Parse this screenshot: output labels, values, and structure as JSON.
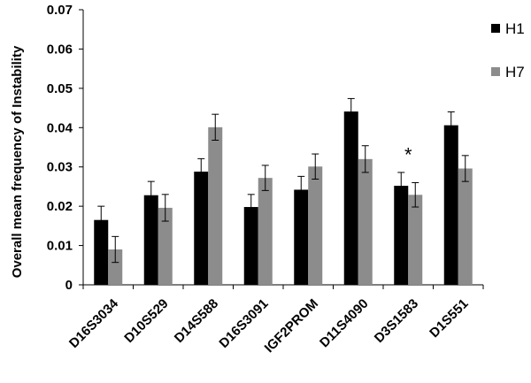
{
  "chart_data": {
    "type": "bar",
    "categories": [
      "D16S3034",
      "D10S529",
      "D14S588",
      "D16S3091",
      "IGF2PROM",
      "D11S4090",
      "D3S1583",
      "D1S551"
    ],
    "series": [
      {
        "name": "H1",
        "color": "#000000",
        "values": [
          0.0165,
          0.0228,
          0.0288,
          0.0198,
          0.0242,
          0.0441,
          0.0252,
          0.0406
        ],
        "errors": [
          0.0035,
          0.0035,
          0.0033,
          0.0032,
          0.0034,
          0.0033,
          0.0034,
          0.0034
        ]
      },
      {
        "name": "H7",
        "color": "#8c8c8c",
        "values": [
          0.009,
          0.0196,
          0.0401,
          0.0272,
          0.0301,
          0.032,
          0.0229,
          0.0296
        ],
        "errors": [
          0.0033,
          0.0034,
          0.0033,
          0.0032,
          0.0032,
          0.0034,
          0.0031,
          0.0033
        ]
      }
    ],
    "ylabel": "Overall mean frequency of Instability",
    "xlabel": "",
    "ylim": [
      0,
      0.07
    ],
    "yticks": [
      "0",
      "0.01",
      "0.02",
      "0.03",
      "0.04",
      "0.05",
      "0.06",
      "0.07"
    ],
    "legend_position": "right",
    "annotations": [
      {
        "text": "*",
        "category": "D3S1583",
        "y": 0.0345
      }
    ],
    "grid": false
  }
}
